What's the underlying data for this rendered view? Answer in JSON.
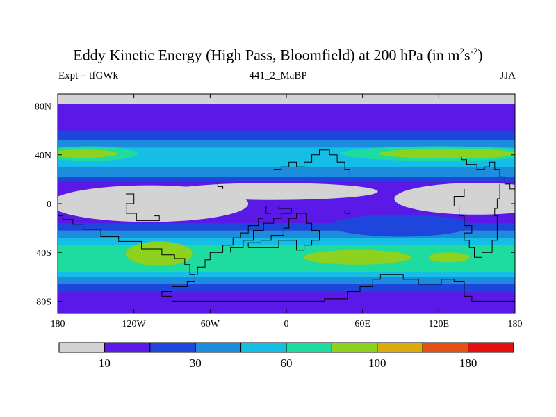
{
  "chart_data": {
    "type": "heatmap",
    "title": {
      "main": "Eddy Kinetic Energy (High Pass, Bloomfield) at 200 hPa (in m",
      "sup1": "2",
      "mid": "s",
      "sup2": "-2",
      "end": ")"
    },
    "left_label": "Expt = tfGWk",
    "center_label": "441_2_MaBP",
    "right_label": "JJA",
    "variable": "Eddy kinetic energy (m2 s-2)",
    "level": "200 hPa",
    "xlim": [
      -180,
      180
    ],
    "ylim": [
      -90,
      90
    ],
    "x_ticks": [
      {
        "value": -180,
        "label": "180"
      },
      {
        "value": -120,
        "label": "120W"
      },
      {
        "value": -60,
        "label": "60W"
      },
      {
        "value": 0,
        "label": "0"
      },
      {
        "value": 60,
        "label": "60E"
      },
      {
        "value": 120,
        "label": "120E"
      },
      {
        "value": 180,
        "label": "180"
      }
    ],
    "y_ticks": [
      {
        "value": 80,
        "label": "80N"
      },
      {
        "value": 40,
        "label": "40N"
      },
      {
        "value": 0,
        "label": "0"
      },
      {
        "value": -40,
        "label": "40S"
      },
      {
        "value": -80,
        "label": "80S"
      }
    ],
    "colorbar": {
      "colors": [
        "#d3d3d3",
        "#5a19e6",
        "#1e46dc",
        "#1e8cdc",
        "#14bee6",
        "#1edca0",
        "#8cd21e",
        "#dcaa0a",
        "#e65014",
        "#e60f0f"
      ],
      "labels": [
        {
          "boundary": 1,
          "text": "10"
        },
        {
          "boundary": 3,
          "text": "30"
        },
        {
          "boundary": 5,
          "text": "60"
        },
        {
          "boundary": 7,
          "text": "100"
        },
        {
          "boundary": 9,
          "text": "180"
        }
      ]
    },
    "bands": [
      {
        "lat_top": 90,
        "lat_bottom": 82,
        "level": 0
      },
      {
        "lat_top": 82,
        "lat_bottom": 60,
        "level": 1
      },
      {
        "lat_top": 60,
        "lat_bottom": 52,
        "level": 2
      },
      {
        "lat_top": 52,
        "lat_bottom": 46,
        "level": 3
      },
      {
        "lat_top": 46,
        "lat_bottom": 30,
        "level": 4
      },
      {
        "lat_top": 30,
        "lat_bottom": 22,
        "level": 3
      },
      {
        "lat_top": 22,
        "lat_bottom": 18,
        "level": 2
      },
      {
        "lat_top": 18,
        "lat_bottom": 12,
        "level": 1
      },
      {
        "lat_top": 12,
        "lat_bottom": -10,
        "level": 1
      },
      {
        "lat_top": -10,
        "lat_bottom": -16,
        "level": 1
      },
      {
        "lat_top": -16,
        "lat_bottom": -22,
        "level": 2
      },
      {
        "lat_top": -22,
        "lat_bottom": -28,
        "level": 3
      },
      {
        "lat_top": -28,
        "lat_bottom": -34,
        "level": 4
      },
      {
        "lat_top": -34,
        "lat_bottom": -56,
        "level": 5
      },
      {
        "lat_top": -56,
        "lat_bottom": -60,
        "level": 4
      },
      {
        "lat_top": -60,
        "lat_bottom": -66,
        "level": 3
      },
      {
        "lat_top": -66,
        "lat_bottom": -72,
        "level": 2
      },
      {
        "lat_top": -72,
        "lat_bottom": -90,
        "level": 1
      }
    ],
    "patches": [
      {
        "name": "ek-patch-nh-jet-atlantic",
        "level": 5,
        "lon": -155,
        "lat": 41,
        "rlon": 38,
        "rlat": 6
      },
      {
        "name": "ek-patch-nh-jet-atlantic-core",
        "level": 6,
        "lon": -160,
        "lat": 41,
        "rlon": 27,
        "rlat": 3.5
      },
      {
        "name": "ek-patch-nh-jet-pacific",
        "level": 5,
        "lon": 120,
        "lat": 41,
        "rlon": 78,
        "rlat": 6
      },
      {
        "name": "ek-patch-nh-jet-pacific-core",
        "level": 6,
        "lon": 128,
        "lat": 41,
        "rlon": 55,
        "rlat": 4
      },
      {
        "name": "ek-patch-tropic-gray-west",
        "level": 0,
        "lon": -108,
        "lat": 0,
        "rlon": 78,
        "rlat": 15
      },
      {
        "name": "ek-patch-tropic-gray-west-ext",
        "level": 0,
        "lon": -10,
        "lat": 10,
        "rlon": 82,
        "rlat": 7
      },
      {
        "name": "ek-patch-tropic-gray-east",
        "level": 0,
        "lon": 150,
        "lat": 4,
        "rlon": 65,
        "rlat": 13
      },
      {
        "name": "ek-patch-tropic-blue-east",
        "level": 2,
        "lon": 90,
        "lat": -18,
        "rlon": 55,
        "rlat": 9
      },
      {
        "name": "ek-patch-sh-jet-pacific",
        "level": 6,
        "lon": -100,
        "lat": -41,
        "rlon": 26,
        "rlat": 10
      },
      {
        "name": "ek-patch-sh-jet-indian",
        "level": 6,
        "lon": 56,
        "lat": -44,
        "rlon": 42,
        "rlat": 6
      },
      {
        "name": "ek-patch-sh-jet-australia",
        "level": 6,
        "lon": 128,
        "lat": -44,
        "rlon": 16,
        "rlat": 4
      }
    ],
    "coastlines": [
      {
        "name": "coastline-north-america",
        "points": [
          [
            -180,
            -10
          ],
          [
            -176,
            -10
          ],
          [
            -176,
            -13
          ],
          [
            -168,
            -13
          ],
          [
            -168,
            -17
          ],
          [
            -160,
            -17
          ],
          [
            -160,
            -21
          ],
          [
            -146,
            -21
          ],
          [
            -146,
            -27
          ],
          [
            -132,
            -27
          ],
          [
            -132,
            -31
          ],
          [
            -114,
            -31
          ],
          [
            -114,
            -37
          ],
          [
            -98,
            -37
          ],
          [
            -98,
            -42
          ],
          [
            -88,
            -42
          ],
          [
            -88,
            -45
          ],
          [
            -80,
            -45
          ],
          [
            -80,
            -50
          ],
          [
            -76,
            -50
          ],
          [
            -76,
            -58
          ],
          [
            -72,
            -58
          ],
          [
            -72,
            -64
          ],
          [
            -78,
            -64
          ],
          [
            -78,
            -68
          ],
          [
            -90,
            -68
          ],
          [
            -90,
            -72
          ],
          [
            -98,
            -72
          ],
          [
            -98,
            -76
          ],
          [
            -90,
            -76
          ],
          [
            -90,
            -80
          ],
          [
            0,
            -80
          ],
          [
            30,
            -80
          ],
          [
            30,
            -78
          ],
          [
            48,
            -78
          ],
          [
            48,
            -72
          ],
          [
            58,
            -72
          ],
          [
            58,
            -68
          ],
          [
            68,
            -68
          ],
          [
            68,
            -62
          ],
          [
            74,
            -62
          ],
          [
            74,
            -58
          ],
          [
            92,
            -58
          ],
          [
            92,
            -62
          ],
          [
            104,
            -62
          ],
          [
            104,
            -66
          ],
          [
            122,
            -66
          ],
          [
            122,
            -62
          ],
          [
            132,
            -62
          ],
          [
            132,
            -64
          ],
          [
            140,
            -64
          ],
          [
            140,
            -76
          ],
          [
            146,
            -76
          ],
          [
            146,
            -80
          ],
          [
            180,
            -80
          ]
        ]
      },
      {
        "name": "coastline-antarctica-west",
        "points": [
          [
            -70,
            -58
          ],
          [
            -70,
            -52
          ],
          [
            -64,
            -52
          ],
          [
            -64,
            -46
          ],
          [
            -60,
            -46
          ],
          [
            -60,
            -40
          ],
          [
            -50,
            -40
          ],
          [
            -50,
            -34
          ],
          [
            -42,
            -34
          ],
          [
            -42,
            -28
          ],
          [
            -36,
            -28
          ],
          [
            -36,
            -24
          ],
          [
            -30,
            -24
          ],
          [
            -30,
            -18
          ],
          [
            -22,
            -18
          ],
          [
            -22,
            -12
          ],
          [
            -18,
            -12
          ]
        ]
      },
      {
        "name": "coastline-south-america",
        "points": [
          [
            -30,
            -36
          ],
          [
            -30,
            -32
          ],
          [
            -20,
            -32
          ],
          [
            -20,
            -30
          ],
          [
            -12,
            -30
          ],
          [
            -12,
            -26
          ],
          [
            -2,
            -26
          ],
          [
            -2,
            -20
          ],
          [
            2,
            -20
          ],
          [
            2,
            -12
          ],
          [
            8,
            -12
          ],
          [
            8,
            -8
          ],
          [
            16,
            -8
          ],
          [
            16,
            -16
          ],
          [
            20,
            -16
          ],
          [
            20,
            -22
          ],
          [
            26,
            -22
          ],
          [
            26,
            -30
          ],
          [
            20,
            -30
          ],
          [
            20,
            -34
          ],
          [
            14,
            -34
          ],
          [
            14,
            -38
          ],
          [
            8,
            -38
          ],
          [
            8,
            -30
          ],
          [
            -6,
            -30
          ],
          [
            -6,
            -36
          ],
          [
            -30,
            -36
          ]
        ]
      },
      {
        "name": "coastline-africa",
        "points": [
          [
            -44,
            -40
          ],
          [
            -44,
            -36
          ],
          [
            -34,
            -36
          ],
          [
            -34,
            -30
          ],
          [
            -26,
            -30
          ],
          [
            -26,
            -22
          ],
          [
            -18,
            -22
          ],
          [
            -18,
            -16
          ],
          [
            -10,
            -16
          ],
          [
            -10,
            -12
          ],
          [
            -4,
            -12
          ],
          [
            -4,
            -8
          ],
          [
            4,
            -8
          ],
          [
            4,
            -4
          ],
          [
            -6,
            -4
          ],
          [
            -6,
            -2
          ],
          [
            -16,
            -2
          ],
          [
            -16,
            -8
          ],
          [
            -12,
            -8
          ]
        ]
      },
      {
        "name": "coastline-eurasia",
        "points": [
          [
            -10,
            28
          ],
          [
            -4,
            28
          ],
          [
            -4,
            30
          ],
          [
            2,
            30
          ],
          [
            2,
            34
          ],
          [
            8,
            34
          ],
          [
            8,
            30
          ],
          [
            14,
            30
          ],
          [
            14,
            34
          ],
          [
            20,
            34
          ],
          [
            20,
            40
          ],
          [
            26,
            40
          ],
          [
            26,
            44
          ],
          [
            34,
            44
          ],
          [
            34,
            40
          ],
          [
            40,
            40
          ],
          [
            40,
            34
          ],
          [
            46,
            34
          ],
          [
            46,
            28
          ],
          [
            50,
            28
          ],
          [
            50,
            22
          ]
        ]
      },
      {
        "name": "coastline-china",
        "points": [
          [
            138,
            38
          ],
          [
            138,
            36
          ],
          [
            142,
            36
          ],
          [
            142,
            32
          ],
          [
            150,
            32
          ],
          [
            150,
            28
          ],
          [
            156,
            28
          ],
          [
            156,
            30
          ],
          [
            160,
            30
          ],
          [
            160,
            34
          ],
          [
            164,
            34
          ],
          [
            164,
            28
          ],
          [
            168,
            28
          ],
          [
            168,
            22
          ],
          [
            172,
            22
          ],
          [
            172,
            16
          ],
          [
            176,
            16
          ],
          [
            176,
            12
          ],
          [
            180,
            12
          ]
        ]
      },
      {
        "name": "coastline-australia-east",
        "points": [
          [
            168,
            16
          ],
          [
            168,
            4
          ],
          [
            166,
            4
          ],
          [
            166,
            -4
          ],
          [
            164,
            -4
          ],
          [
            164,
            -10
          ],
          [
            166,
            -10
          ],
          [
            166,
            -30
          ],
          [
            162,
            -30
          ],
          [
            162,
            -40
          ],
          [
            154,
            -40
          ],
          [
            154,
            -44
          ],
          [
            148,
            -44
          ],
          [
            148,
            -36
          ],
          [
            144,
            -36
          ],
          [
            144,
            -30
          ],
          [
            140,
            -30
          ],
          [
            140,
            -24
          ],
          [
            146,
            -24
          ],
          [
            146,
            -18
          ],
          [
            140,
            -18
          ],
          [
            140,
            -10
          ],
          [
            136,
            -10
          ],
          [
            136,
            -2
          ],
          [
            132,
            -2
          ],
          [
            132,
            6
          ],
          [
            140,
            6
          ],
          [
            140,
            12
          ]
        ]
      },
      {
        "name": "coastline-central-america",
        "points": [
          [
            -126,
            8
          ],
          [
            -120,
            8
          ],
          [
            -120,
            0
          ],
          [
            -126,
            0
          ],
          [
            -126,
            -8
          ],
          [
            -118,
            -8
          ],
          [
            -118,
            -14
          ],
          [
            -100,
            -14
          ],
          [
            -100,
            -10
          ],
          [
            -104,
            -10
          ]
        ]
      },
      {
        "name": "coastline-arabia",
        "points": [
          [
            -54,
            18
          ],
          [
            -54,
            14
          ],
          [
            -50,
            14
          ],
          [
            -50,
            12
          ]
        ]
      },
      {
        "name": "coastline-india",
        "points": [
          [
            46,
            -8
          ],
          [
            46,
            -6
          ],
          [
            50,
            -6
          ],
          [
            50,
            -8
          ],
          [
            46,
            -8
          ]
        ]
      }
    ]
  }
}
